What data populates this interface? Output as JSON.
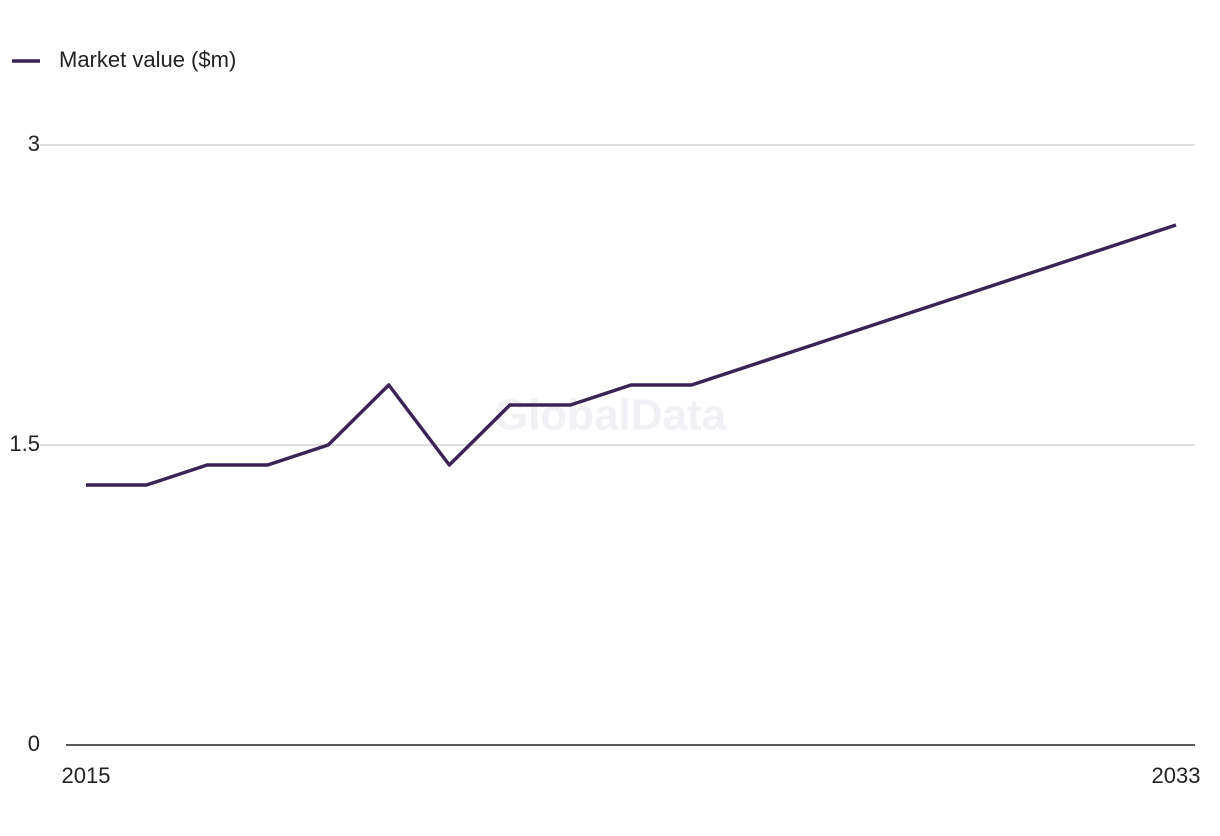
{
  "chart_data": {
    "type": "line",
    "watermark": "GlobalData",
    "x": [
      2015,
      2016,
      2017,
      2018,
      2019,
      2020,
      2021,
      2022,
      2023,
      2024,
      2025,
      2026,
      2027,
      2028,
      2029,
      2030,
      2031,
      2032,
      2033
    ],
    "series": [
      {
        "name": "Market value ($m)",
        "color": "#3a2456",
        "values": [
          1.3,
          1.3,
          1.4,
          1.4,
          1.5,
          1.8,
          1.4,
          1.7,
          1.7,
          1.8,
          1.8,
          1.9,
          2.0,
          2.1,
          2.2,
          2.3,
          2.4,
          2.5,
          2.6
        ]
      }
    ],
    "xlim": [
      2015,
      2033
    ],
    "xticks": [
      2015,
      2033
    ],
    "ylim": [
      0,
      3
    ],
    "yticks": [
      0,
      1.5,
      3
    ],
    "grid": true,
    "legend": "top-left"
  }
}
